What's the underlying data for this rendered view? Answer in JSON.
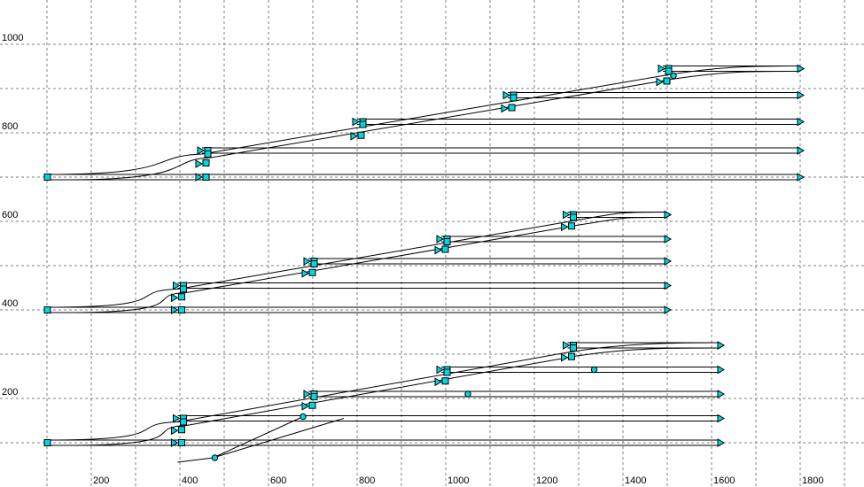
{
  "chart_data": {
    "type": "diagram",
    "x_ticks": [
      200,
      400,
      600,
      800,
      1000,
      1200,
      1400,
      1600,
      1800
    ],
    "y_ticks": [
      200,
      400,
      600,
      800,
      1000
    ],
    "x_grid": [
      100,
      200,
      300,
      400,
      500,
      600,
      700,
      800,
      900,
      1000,
      1100,
      1200,
      1300,
      1400,
      1500,
      1600,
      1700,
      1800,
      1900
    ],
    "y_grid": [
      100,
      200,
      300,
      400,
      500,
      600,
      700,
      800,
      900,
      1000
    ],
    "xlim": [
      0,
      1920
    ],
    "ylim": [
      0,
      1100
    ],
    "grid": true,
    "colors": {
      "track": "#000000",
      "outer_curve": "#1a1a8c",
      "marker": "#00d8e0",
      "highlight": "#d00000",
      "teal_line": "#1a8c8c"
    },
    "yards": [
      {
        "x_start": 100,
        "x_end": 1800,
        "tracks_y": [
          700,
          760,
          825,
          885,
          945
        ],
        "switch_x": [
          450,
          800,
          1140,
          1490
        ]
      },
      {
        "x_start": 100,
        "x_end": 1500,
        "tracks_y": [
          400,
          455,
          510,
          560,
          615
        ],
        "switch_x": [
          395,
          690,
          990,
          1275
        ]
      },
      {
        "x_start": 100,
        "x_end": 1620,
        "tracks_y": [
          100,
          155,
          210,
          265,
          320
        ],
        "switch_x": [
          395,
          690,
          990,
          1275
        ]
      }
    ]
  }
}
